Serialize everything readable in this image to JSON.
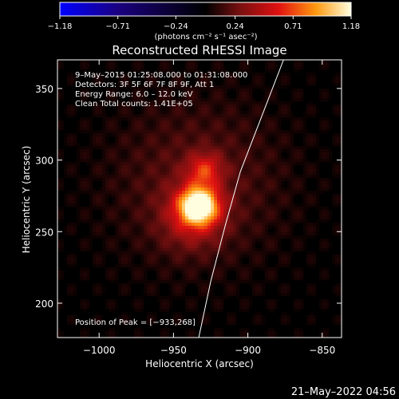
{
  "chart_data": {
    "type": "heatmap",
    "title": "Reconstructed RHESSI Image",
    "xlabel": "Heliocentric X (arcsec)",
    "ylabel": "Heliocentric Y (arcsec)",
    "xlim": [
      -1028,
      -837
    ],
    "ylim": [
      176,
      370
    ],
    "x_ticks": [
      -1000,
      -950,
      -900,
      -850
    ],
    "x_tick_labels": [
      "−1000",
      "−950",
      "−900",
      "−850"
    ],
    "y_ticks": [
      200,
      250,
      300,
      350
    ],
    "y_tick_labels": [
      "200",
      "250",
      "300",
      "350"
    ],
    "colorbar": {
      "range": [
        -1.18,
        1.18
      ],
      "ticks": [
        -1.18,
        -0.71,
        -0.24,
        0.24,
        0.71,
        1.18
      ],
      "tick_labels": [
        "−1.18",
        "−0.71",
        "−0.24",
        "0.24",
        "0.71",
        "1.18"
      ],
      "unit_label": "(photons cm⁻² s⁻¹ asec⁻²)"
    },
    "annotations": [
      "9–May–2015 01:25:08.000 to 01:31:08.000",
      "Detectors: 3F 5F 6F 7F 8F 9F, Att 1",
      "Energy Range: 6.0 – 12.0 keV",
      "Clean    Total counts: 1.41E+05"
    ],
    "peak_label": "Position of Peak = [−933,268]",
    "peak": [
      -933,
      268
    ],
    "sources": [
      {
        "x": -933,
        "y": 268,
        "sigma": 9,
        "amp": 1.18
      },
      {
        "x": -929,
        "y": 293,
        "sigma": 8,
        "amp": 0.45
      },
      {
        "x": -938,
        "y": 258,
        "sigma": 15,
        "amp": 0.3
      },
      {
        "x": -934,
        "y": 285,
        "sigma": 40,
        "amp": 0.22
      }
    ],
    "limb": [
      [
        -933,
        176
      ],
      [
        -925,
        215
      ],
      [
        -915,
        255
      ],
      [
        -905,
        292
      ],
      [
        -892,
        327
      ],
      [
        -876,
        370
      ]
    ]
  },
  "timestamp": "21–May–2022 04:56",
  "colors": {
    "background": "#000000",
    "axes": "#ffffff",
    "limb": "#ffffff"
  }
}
